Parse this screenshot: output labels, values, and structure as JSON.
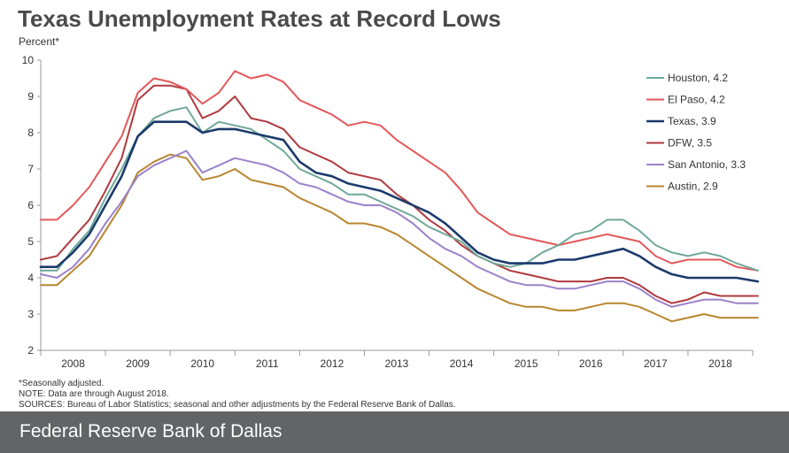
{
  "title": "Texas Unemployment Rates at Record Lows",
  "footer": "Federal Reserve Bank of Dallas",
  "notes": [
    "*Seasonally adjusted.",
    "NOTE: Data are through August 2018.",
    "SOURCES: Bureau of Labor Statistics; seasonal and other adjustments by the Federal Reserve Bank of Dallas."
  ],
  "chart_data": {
    "type": "line",
    "title": "Texas Unemployment Rates at Record Lows",
    "xlabel": "",
    "ylabel": "Percent*",
    "ylim": [
      2,
      10
    ],
    "yticks": [
      2,
      3,
      4,
      5,
      6,
      7,
      8,
      9,
      10
    ],
    "xlim": [
      2007.5,
      2018.5
    ],
    "x_tick_labels": [
      "2008",
      "2009",
      "2010",
      "2011",
      "2012",
      "2013",
      "2014",
      "2015",
      "2016",
      "2017",
      "2018"
    ],
    "legend_position": "right",
    "series": [
      {
        "name": "Houston, 4.2",
        "color": "#6fa89a",
        "x": [
          2007.5,
          2007.75,
          2008.0,
          2008.25,
          2008.5,
          2008.75,
          2009.0,
          2009.25,
          2009.5,
          2009.75,
          2010.0,
          2010.25,
          2010.5,
          2010.75,
          2011.0,
          2011.25,
          2011.5,
          2011.75,
          2012.0,
          2012.25,
          2012.5,
          2012.75,
          2013.0,
          2013.25,
          2013.5,
          2013.75,
          2014.0,
          2014.25,
          2014.5,
          2014.75,
          2015.0,
          2015.25,
          2015.5,
          2015.75,
          2016.0,
          2016.25,
          2016.5,
          2016.75,
          2017.0,
          2017.25,
          2017.5,
          2017.75,
          2018.0,
          2018.25,
          2018.58
        ],
        "y": [
          4.2,
          4.2,
          4.8,
          5.3,
          6.2,
          7.0,
          7.9,
          8.4,
          8.6,
          8.7,
          8.0,
          8.3,
          8.2,
          8.1,
          7.8,
          7.5,
          7.0,
          6.8,
          6.6,
          6.3,
          6.3,
          6.1,
          5.9,
          5.7,
          5.4,
          5.2,
          5.0,
          4.6,
          4.4,
          4.3,
          4.4,
          4.7,
          4.9,
          5.2,
          5.3,
          5.6,
          5.6,
          5.3,
          4.9,
          4.7,
          4.6,
          4.7,
          4.6,
          4.4,
          4.2
        ]
      },
      {
        "name": "El Paso, 4.2",
        "color": "#e4575a",
        "x": [
          2007.5,
          2007.75,
          2008.0,
          2008.25,
          2008.5,
          2008.75,
          2009.0,
          2009.25,
          2009.5,
          2009.75,
          2010.0,
          2010.25,
          2010.5,
          2010.75,
          2011.0,
          2011.25,
          2011.5,
          2011.75,
          2012.0,
          2012.25,
          2012.5,
          2012.75,
          2013.0,
          2013.25,
          2013.5,
          2013.75,
          2014.0,
          2014.25,
          2014.5,
          2014.75,
          2015.0,
          2015.25,
          2015.5,
          2015.75,
          2016.0,
          2016.25,
          2016.5,
          2016.75,
          2017.0,
          2017.25,
          2017.5,
          2017.75,
          2018.0,
          2018.25,
          2018.58
        ],
        "y": [
          5.6,
          5.6,
          6.0,
          6.5,
          7.2,
          7.9,
          9.1,
          9.5,
          9.4,
          9.2,
          8.8,
          9.1,
          9.7,
          9.5,
          9.6,
          9.4,
          8.9,
          8.7,
          8.5,
          8.2,
          8.3,
          8.2,
          7.8,
          7.5,
          7.2,
          6.9,
          6.4,
          5.8,
          5.5,
          5.2,
          5.1,
          5.0,
          4.9,
          5.0,
          5.1,
          5.2,
          5.1,
          5.0,
          4.6,
          4.4,
          4.5,
          4.5,
          4.5,
          4.3,
          4.2
        ]
      },
      {
        "name": "Texas, 3.9",
        "color": "#1b3a6b",
        "x": [
          2007.5,
          2007.75,
          2008.0,
          2008.25,
          2008.5,
          2008.75,
          2009.0,
          2009.25,
          2009.5,
          2009.75,
          2010.0,
          2010.25,
          2010.5,
          2010.75,
          2011.0,
          2011.25,
          2011.5,
          2011.75,
          2012.0,
          2012.25,
          2012.5,
          2012.75,
          2013.0,
          2013.25,
          2013.5,
          2013.75,
          2014.0,
          2014.25,
          2014.5,
          2014.75,
          2015.0,
          2015.25,
          2015.5,
          2015.75,
          2016.0,
          2016.25,
          2016.5,
          2016.75,
          2017.0,
          2017.25,
          2017.5,
          2017.75,
          2018.0,
          2018.25,
          2018.58
        ],
        "y": [
          4.3,
          4.3,
          4.7,
          5.2,
          6.0,
          6.8,
          7.9,
          8.3,
          8.3,
          8.3,
          8.0,
          8.1,
          8.1,
          8.0,
          7.9,
          7.8,
          7.2,
          6.9,
          6.8,
          6.6,
          6.5,
          6.4,
          6.2,
          6.0,
          5.8,
          5.5,
          5.1,
          4.7,
          4.5,
          4.4,
          4.4,
          4.4,
          4.5,
          4.5,
          4.6,
          4.7,
          4.8,
          4.6,
          4.3,
          4.1,
          4.0,
          4.0,
          4.0,
          4.0,
          3.9
        ]
      },
      {
        "name": "DFW, 3.5",
        "color": "#b03a3e",
        "x": [
          2007.5,
          2007.75,
          2008.0,
          2008.25,
          2008.5,
          2008.75,
          2009.0,
          2009.25,
          2009.5,
          2009.75,
          2010.0,
          2010.25,
          2010.5,
          2010.75,
          2011.0,
          2011.25,
          2011.5,
          2011.75,
          2012.0,
          2012.25,
          2012.5,
          2012.75,
          2013.0,
          2013.25,
          2013.5,
          2013.75,
          2014.0,
          2014.25,
          2014.5,
          2014.75,
          2015.0,
          2015.25,
          2015.5,
          2015.75,
          2016.0,
          2016.25,
          2016.5,
          2016.75,
          2017.0,
          2017.25,
          2017.5,
          2017.75,
          2018.0,
          2018.25,
          2018.58
        ],
        "y": [
          4.5,
          4.6,
          5.1,
          5.6,
          6.4,
          7.3,
          8.9,
          9.3,
          9.3,
          9.2,
          8.4,
          8.6,
          9.0,
          8.4,
          8.3,
          8.1,
          7.6,
          7.4,
          7.2,
          6.9,
          6.8,
          6.7,
          6.3,
          6.0,
          5.6,
          5.3,
          4.9,
          4.6,
          4.4,
          4.2,
          4.1,
          4.0,
          3.9,
          3.9,
          3.9,
          4.0,
          4.0,
          3.8,
          3.5,
          3.3,
          3.4,
          3.6,
          3.5,
          3.5,
          3.5
        ]
      },
      {
        "name": "San Antonio, 3.3",
        "color": "#9b82c9",
        "x": [
          2007.5,
          2007.75,
          2008.0,
          2008.25,
          2008.5,
          2008.75,
          2009.0,
          2009.25,
          2009.5,
          2009.75,
          2010.0,
          2010.25,
          2010.5,
          2010.75,
          2011.0,
          2011.25,
          2011.5,
          2011.75,
          2012.0,
          2012.25,
          2012.5,
          2012.75,
          2013.0,
          2013.25,
          2013.5,
          2013.75,
          2014.0,
          2014.25,
          2014.5,
          2014.75,
          2015.0,
          2015.25,
          2015.5,
          2015.75,
          2016.0,
          2016.25,
          2016.5,
          2016.75,
          2017.0,
          2017.25,
          2017.5,
          2017.75,
          2018.0,
          2018.25,
          2018.58
        ],
        "y": [
          4.1,
          4.0,
          4.3,
          4.8,
          5.5,
          6.1,
          6.8,
          7.1,
          7.3,
          7.5,
          6.9,
          7.1,
          7.3,
          7.2,
          7.1,
          6.9,
          6.6,
          6.5,
          6.3,
          6.1,
          6.0,
          6.0,
          5.8,
          5.5,
          5.1,
          4.8,
          4.6,
          4.3,
          4.1,
          3.9,
          3.8,
          3.8,
          3.7,
          3.7,
          3.8,
          3.9,
          3.9,
          3.7,
          3.4,
          3.2,
          3.3,
          3.4,
          3.4,
          3.3,
          3.3
        ]
      },
      {
        "name": "Austin, 2.9",
        "color": "#b8862f",
        "x": [
          2007.5,
          2007.75,
          2008.0,
          2008.25,
          2008.5,
          2008.75,
          2009.0,
          2009.25,
          2009.5,
          2009.75,
          2010.0,
          2010.25,
          2010.5,
          2010.75,
          2011.0,
          2011.25,
          2011.5,
          2011.75,
          2012.0,
          2012.25,
          2012.5,
          2012.75,
          2013.0,
          2013.25,
          2013.5,
          2013.75,
          2014.0,
          2014.25,
          2014.5,
          2014.75,
          2015.0,
          2015.25,
          2015.5,
          2015.75,
          2016.0,
          2016.25,
          2016.5,
          2016.75,
          2017.0,
          2017.25,
          2017.5,
          2017.75,
          2018.0,
          2018.25,
          2018.58
        ],
        "y": [
          3.8,
          3.8,
          4.2,
          4.6,
          5.3,
          6.0,
          6.9,
          7.2,
          7.4,
          7.3,
          6.7,
          6.8,
          7.0,
          6.7,
          6.6,
          6.5,
          6.2,
          6.0,
          5.8,
          5.5,
          5.5,
          5.4,
          5.2,
          4.9,
          4.6,
          4.3,
          4.0,
          3.7,
          3.5,
          3.3,
          3.2,
          3.2,
          3.1,
          3.1,
          3.2,
          3.3,
          3.3,
          3.2,
          3.0,
          2.8,
          2.9,
          3.0,
          2.9,
          2.9,
          2.9
        ]
      }
    ]
  }
}
